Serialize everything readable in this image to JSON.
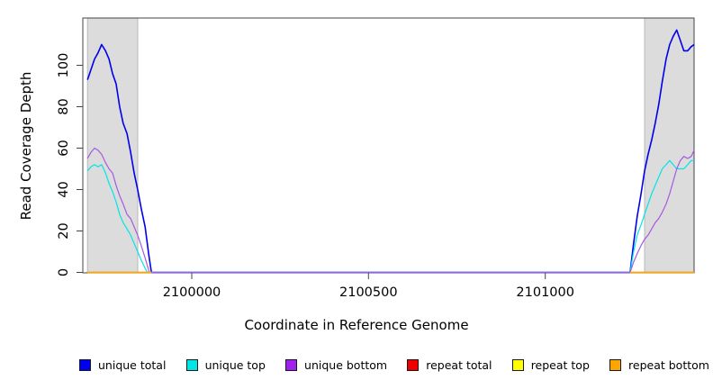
{
  "chart_data": {
    "type": "line",
    "title": "",
    "xlabel": "Coordinate in Reference Genome",
    "ylabel": "Read Coverage Depth",
    "xlim": [
      2099692,
      2101421
    ],
    "ylim": [
      0,
      120
    ],
    "x_ticks": [
      2100000,
      2100500,
      2101000
    ],
    "y_ticks": [
      0,
      20,
      40,
      60,
      80,
      100
    ],
    "grid": false,
    "legend_position": "bottom",
    "region_color": "#dcdcdc",
    "highlight_regions": [
      [
        2099705,
        2099847
      ],
      [
        2101281,
        2101421
      ]
    ],
    "series": [
      {
        "name": "unique total",
        "color": "#0000ee",
        "width": 1.6,
        "segments": [
          [
            [
              2099705,
              93
            ],
            [
              2099715,
              98
            ],
            [
              2099725,
              103
            ],
            [
              2099735,
              106
            ],
            [
              2099745,
              110
            ],
            [
              2099756,
              107
            ],
            [
              2099766,
              103
            ],
            [
              2099776,
              96
            ],
            [
              2099786,
              91
            ],
            [
              2099796,
              80
            ],
            [
              2099806,
              72
            ],
            [
              2099817,
              67
            ],
            [
              2099827,
              58
            ],
            [
              2099837,
              48
            ],
            [
              2099847,
              40
            ],
            [
              2099857,
              31
            ],
            [
              2099868,
              22
            ],
            [
              2099878,
              9
            ],
            [
              2099886,
              0
            ],
            [
              2101240,
              0
            ],
            [
              2101250,
              14
            ],
            [
              2101260,
              27
            ],
            [
              2101271,
              38
            ],
            [
              2101281,
              49
            ],
            [
              2101291,
              57
            ],
            [
              2101301,
              64
            ],
            [
              2101311,
              72
            ],
            [
              2101321,
              81
            ],
            [
              2101331,
              92
            ],
            [
              2101342,
              103
            ],
            [
              2101352,
              110
            ],
            [
              2101362,
              114
            ],
            [
              2101372,
              117
            ],
            [
              2101382,
              112
            ],
            [
              2101392,
              107
            ],
            [
              2101403,
              107
            ],
            [
              2101413,
              109
            ],
            [
              2101421,
              110
            ]
          ]
        ]
      },
      {
        "name": "unique top",
        "color": "#00e5e5",
        "width": 1.2,
        "segments": [
          [
            [
              2099705,
              49
            ],
            [
              2099715,
              51
            ],
            [
              2099725,
              52
            ],
            [
              2099735,
              51
            ],
            [
              2099745,
              52
            ],
            [
              2099756,
              48
            ],
            [
              2099766,
              43
            ],
            [
              2099776,
              39
            ],
            [
              2099786,
              34
            ],
            [
              2099796,
              28
            ],
            [
              2099806,
              24
            ],
            [
              2099817,
              21
            ],
            [
              2099827,
              18
            ],
            [
              2099837,
              14
            ],
            [
              2099847,
              10
            ],
            [
              2099857,
              6
            ],
            [
              2099868,
              2
            ],
            [
              2099874,
              0
            ],
            [
              2101240,
              0
            ],
            [
              2101250,
              10
            ],
            [
              2101260,
              18
            ],
            [
              2101271,
              23
            ],
            [
              2101281,
              28
            ],
            [
              2101291,
              33
            ],
            [
              2101301,
              38
            ],
            [
              2101311,
              42
            ],
            [
              2101321,
              46
            ],
            [
              2101331,
              50
            ],
            [
              2101342,
              52
            ],
            [
              2101352,
              54
            ],
            [
              2101362,
              52
            ],
            [
              2101372,
              50
            ],
            [
              2101382,
              50
            ],
            [
              2101392,
              50
            ],
            [
              2101403,
              52
            ],
            [
              2101413,
              54
            ],
            [
              2101421,
              54
            ]
          ]
        ]
      },
      {
        "name": "unique bottom",
        "color": "#a55ae0",
        "width": 1.2,
        "segments": [
          [
            [
              2099705,
              55
            ],
            [
              2099715,
              58
            ],
            [
              2099725,
              60
            ],
            [
              2099735,
              59
            ],
            [
              2099745,
              57
            ],
            [
              2099756,
              53
            ],
            [
              2099766,
              50
            ],
            [
              2099776,
              48
            ],
            [
              2099786,
              42
            ],
            [
              2099796,
              37
            ],
            [
              2099806,
              33
            ],
            [
              2099817,
              28
            ],
            [
              2099827,
              26
            ],
            [
              2099837,
              22
            ],
            [
              2099847,
              18
            ],
            [
              2099857,
              13
            ],
            [
              2099868,
              7
            ],
            [
              2099880,
              0
            ],
            [
              2101240,
              0
            ],
            [
              2101250,
              5
            ],
            [
              2101260,
              9
            ],
            [
              2101271,
              13
            ],
            [
              2101281,
              16
            ],
            [
              2101291,
              18
            ],
            [
              2101301,
              21
            ],
            [
              2101311,
              24
            ],
            [
              2101321,
              26
            ],
            [
              2101331,
              29
            ],
            [
              2101342,
              33
            ],
            [
              2101352,
              38
            ],
            [
              2101362,
              44
            ],
            [
              2101372,
              50
            ],
            [
              2101382,
              54
            ],
            [
              2101392,
              56
            ],
            [
              2101403,
              55
            ],
            [
              2101413,
              56
            ],
            [
              2101421,
              59
            ]
          ]
        ]
      },
      {
        "name": "repeat total",
        "color": "#ee0000",
        "width": 1.2,
        "segments": [
          [
            [
              2099705,
              0
            ],
            [
              2099886,
              0
            ]
          ],
          [
            [
              2101240,
              0
            ],
            [
              2101421,
              0
            ]
          ]
        ]
      },
      {
        "name": "repeat top",
        "color": "#ffff00",
        "width": 1.2,
        "segments": [
          [
            [
              2099705,
              0
            ],
            [
              2099886,
              0
            ]
          ],
          [
            [
              2101240,
              0
            ],
            [
              2101421,
              0
            ]
          ]
        ]
      },
      {
        "name": "repeat bottom",
        "color": "#ffa500",
        "width": 1.4,
        "segments": [
          [
            [
              2099705,
              0
            ],
            [
              2099886,
              0
            ]
          ],
          [
            [
              2101240,
              0
            ],
            [
              2101421,
              0
            ]
          ]
        ]
      }
    ],
    "legend": [
      {
        "label": "unique total",
        "color": "#0000ee"
      },
      {
        "label": "unique top",
        "color": "#00e5e5"
      },
      {
        "label": "unique bottom",
        "color": "#a020f0"
      },
      {
        "label": "repeat total",
        "color": "#ee0000"
      },
      {
        "label": "repeat top",
        "color": "#ffff00"
      },
      {
        "label": "repeat bottom",
        "color": "#ffa500"
      }
    ]
  }
}
